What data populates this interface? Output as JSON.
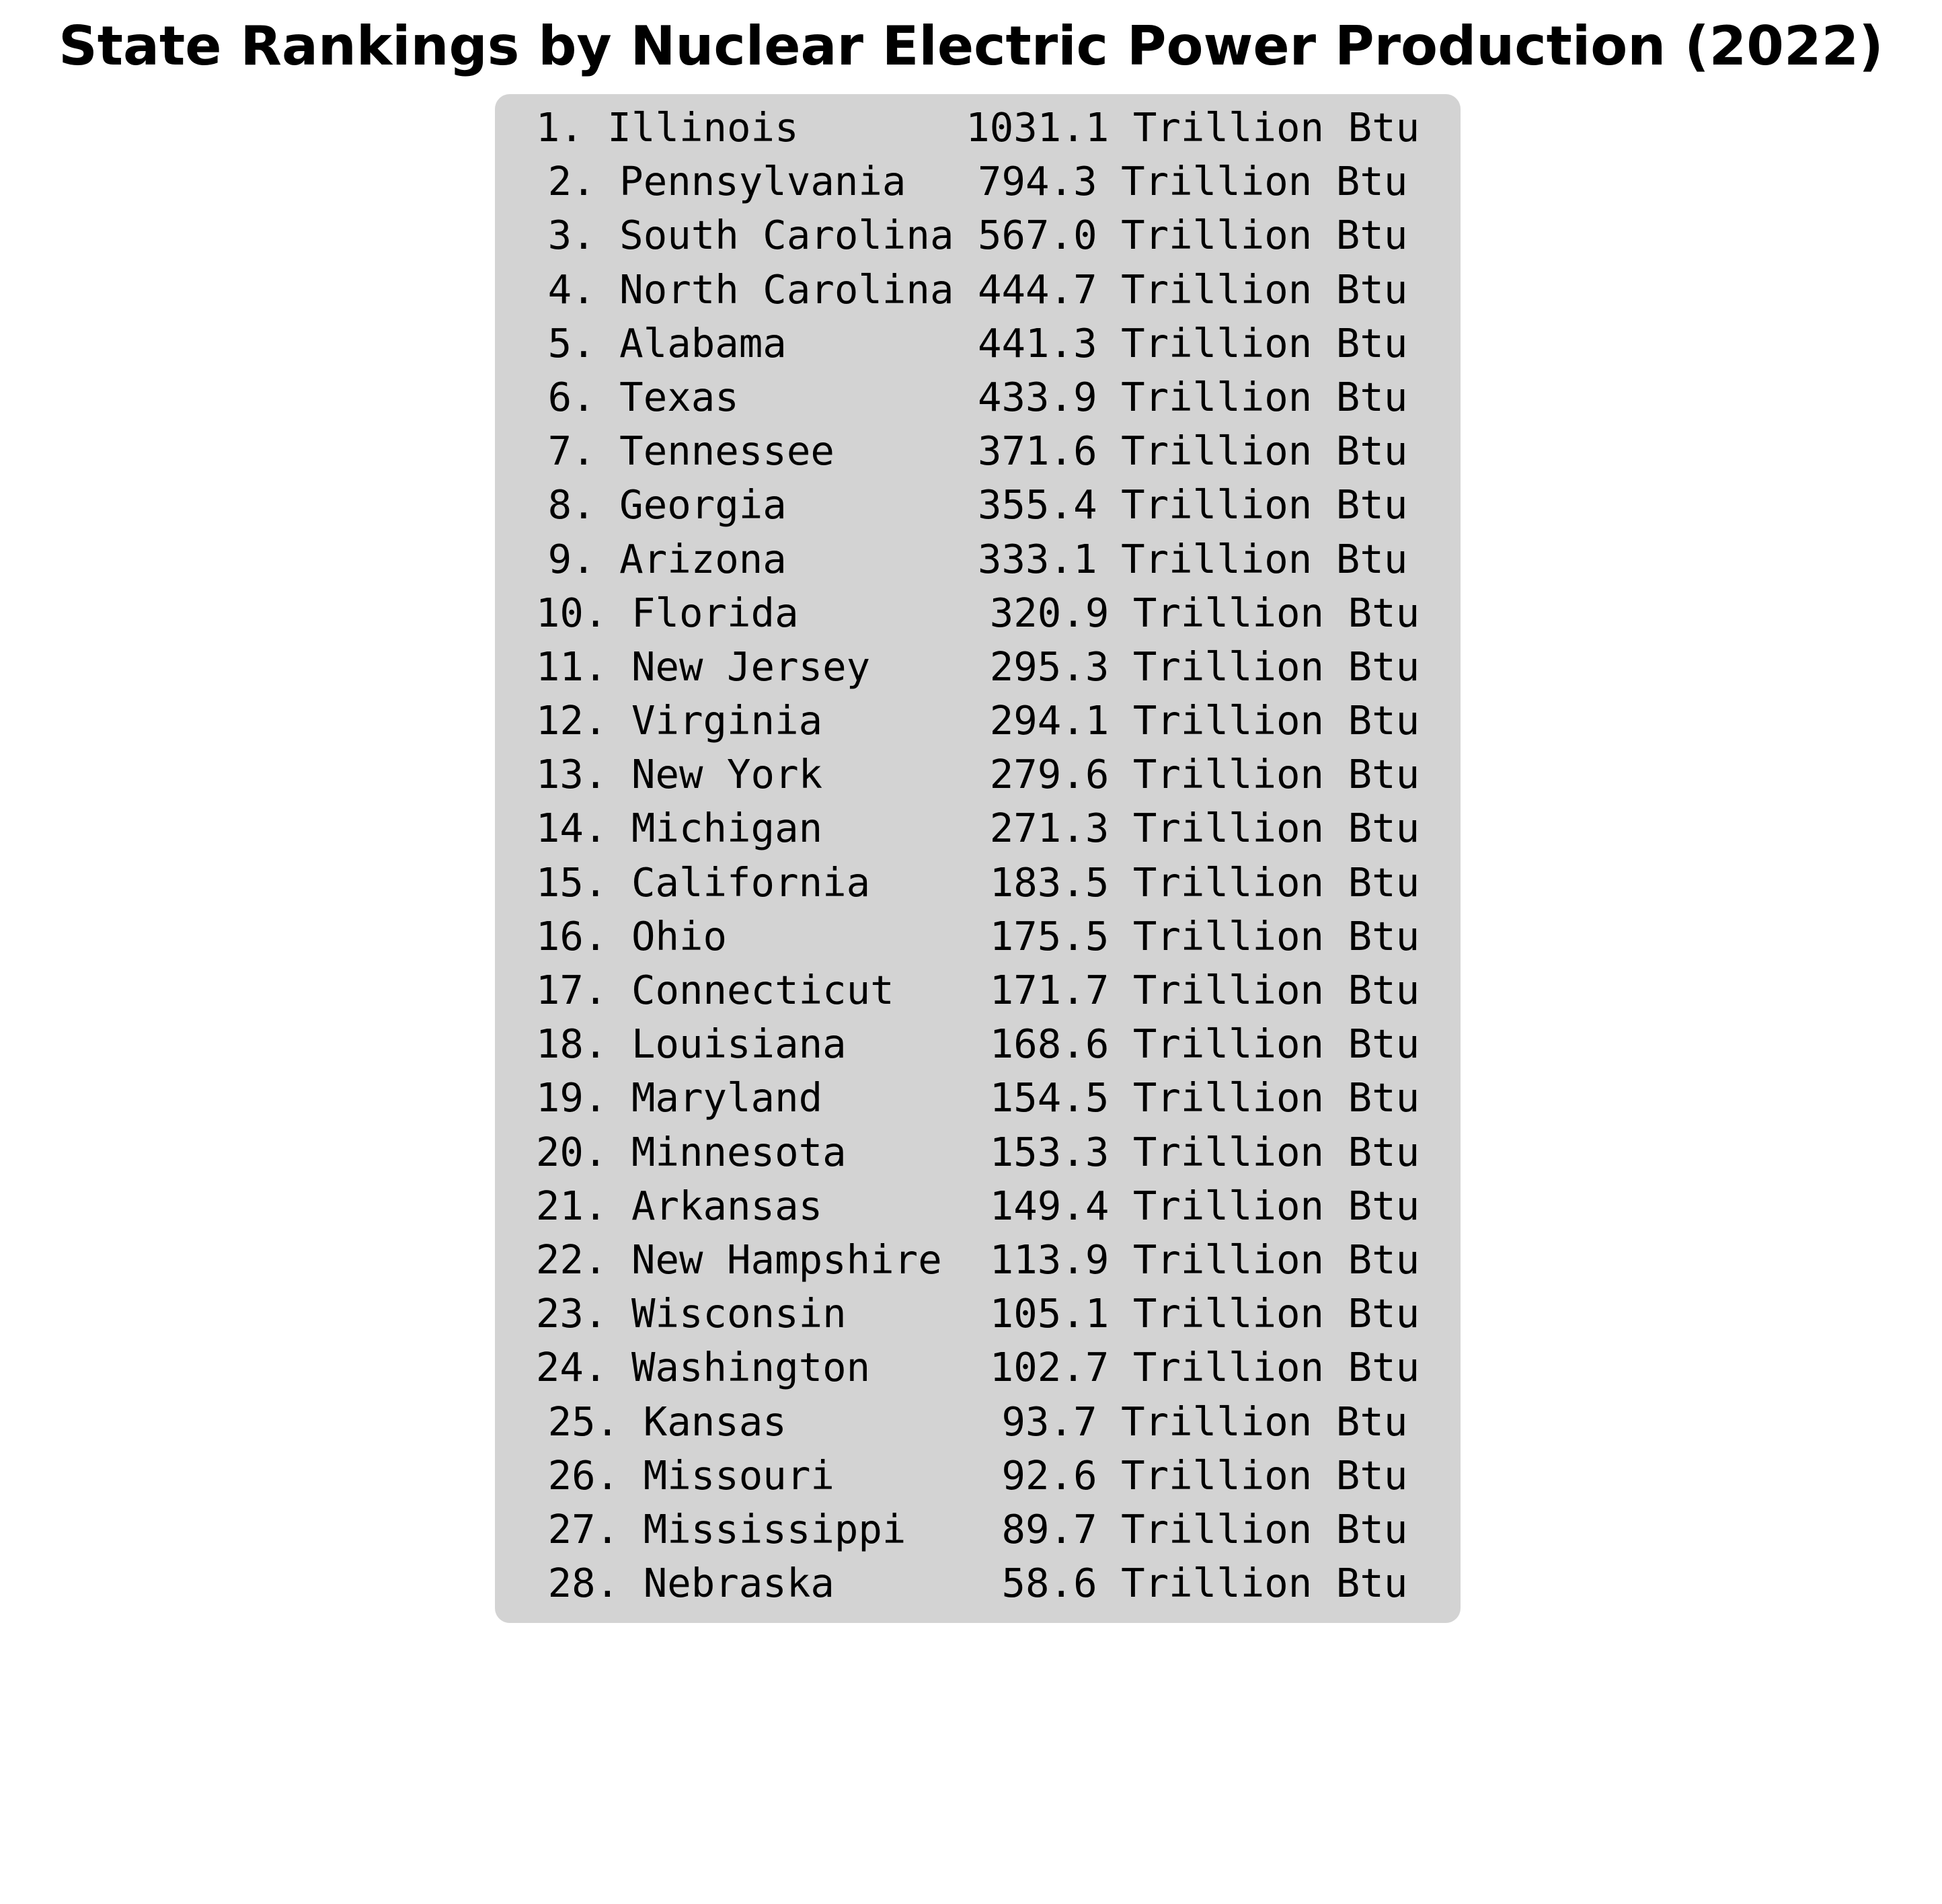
{
  "colors": {
    "panel_background": "#d3d3d3",
    "text": "#000000",
    "page_background": "#ffffff"
  },
  "chart_data": {
    "type": "table",
    "title": "State Rankings by Nuclear Electric Power Production (2022)",
    "unit": "Trillion Btu",
    "rows": [
      {
        "rank": 1,
        "state": "Illinois",
        "value": 1031.1
      },
      {
        "rank": 2,
        "state": "Pennsylvania",
        "value": 794.3
      },
      {
        "rank": 3,
        "state": "South Carolina",
        "value": 567.0
      },
      {
        "rank": 4,
        "state": "North Carolina",
        "value": 444.7
      },
      {
        "rank": 5,
        "state": "Alabama",
        "value": 441.3
      },
      {
        "rank": 6,
        "state": "Texas",
        "value": 433.9
      },
      {
        "rank": 7,
        "state": "Tennessee",
        "value": 371.6
      },
      {
        "rank": 8,
        "state": "Georgia",
        "value": 355.4
      },
      {
        "rank": 9,
        "state": "Arizona",
        "value": 333.1
      },
      {
        "rank": 10,
        "state": "Florida",
        "value": 320.9
      },
      {
        "rank": 11,
        "state": "New Jersey",
        "value": 295.3
      },
      {
        "rank": 12,
        "state": "Virginia",
        "value": 294.1
      },
      {
        "rank": 13,
        "state": "New York",
        "value": 279.6
      },
      {
        "rank": 14,
        "state": "Michigan",
        "value": 271.3
      },
      {
        "rank": 15,
        "state": "California",
        "value": 183.5
      },
      {
        "rank": 16,
        "state": "Ohio",
        "value": 175.5
      },
      {
        "rank": 17,
        "state": "Connecticut",
        "value": 171.7
      },
      {
        "rank": 18,
        "state": "Louisiana",
        "value": 168.6
      },
      {
        "rank": 19,
        "state": "Maryland",
        "value": 154.5
      },
      {
        "rank": 20,
        "state": "Minnesota",
        "value": 153.3
      },
      {
        "rank": 21,
        "state": "Arkansas",
        "value": 149.4
      },
      {
        "rank": 22,
        "state": "New Hampshire",
        "value": 113.9
      },
      {
        "rank": 23,
        "state": "Wisconsin",
        "value": 105.1
      },
      {
        "rank": 24,
        "state": "Washington",
        "value": 102.7
      },
      {
        "rank": 25,
        "state": "Kansas",
        "value": 93.7
      },
      {
        "rank": 26,
        "state": "Missouri",
        "value": 92.6
      },
      {
        "rank": 27,
        "state": "Mississippi",
        "value": 89.7
      },
      {
        "rank": 28,
        "state": "Nebraska",
        "value": 58.6
      }
    ]
  }
}
